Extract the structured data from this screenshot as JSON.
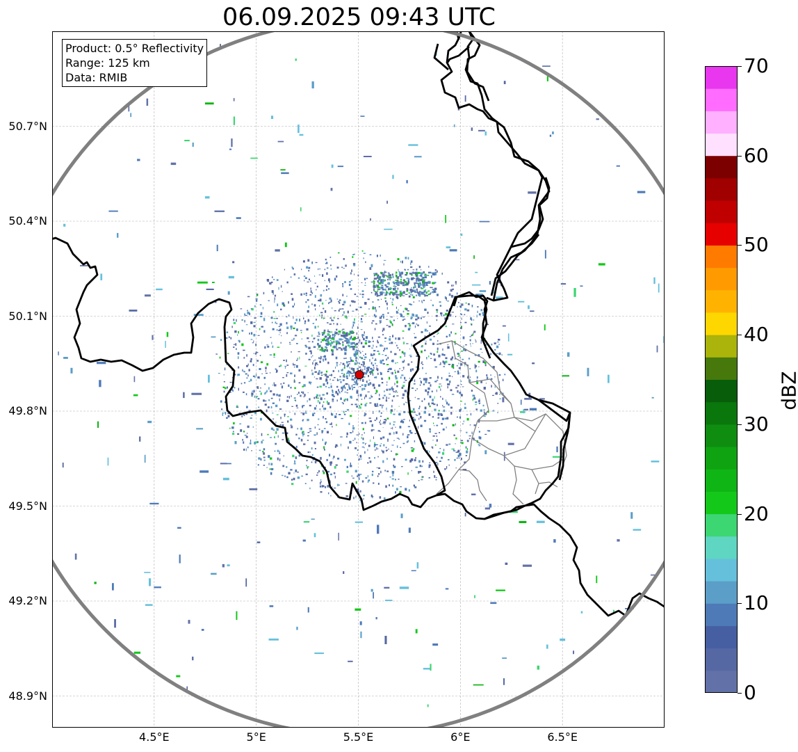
{
  "map": {
    "title": "06.09.2025 09:43 UTC",
    "region": "Belgium / Luxembourg radar coverage",
    "extent": {
      "lon_min": 4.0,
      "lon_max": 7.0,
      "lat_min": 48.8,
      "lat_max": 51.0
    },
    "radar_site": {
      "lon": 5.505,
      "lat": 49.915,
      "color": "#d00000"
    },
    "range_circle_km": 125,
    "info_box": {
      "line1": "Product: 0.5° Reflectivity",
      "line2": "Range: 125 km",
      "line3": "Data: RMIB"
    },
    "lat_ticks": [
      "50.7°N",
      "50.4°N",
      "50.1°N",
      "49.8°N",
      "49.5°N",
      "49.2°N",
      "48.9°N"
    ],
    "lat_values": [
      50.7,
      50.4,
      50.1,
      49.8,
      49.5,
      49.2,
      48.9
    ],
    "lon_ticks": [
      "4.5°E",
      "5°E",
      "5.5°E",
      "6°E",
      "6.5°E"
    ],
    "lon_values": [
      4.5,
      5.0,
      5.5,
      6.0,
      6.5
    ],
    "grid": true
  },
  "colorbar": {
    "label": "dBZ",
    "ticks": [
      "0",
      "10",
      "20",
      "30",
      "40",
      "50",
      "60",
      "70"
    ],
    "tick_values": [
      0,
      10,
      20,
      30,
      40,
      50,
      60,
      70
    ],
    "min": 0,
    "max": 70,
    "colors": [
      "#6272a8",
      "#5668a3",
      "#465fa3",
      "#4e7ab8",
      "#5b9ec8",
      "#65c0dc",
      "#5ed6c2",
      "#3cd673",
      "#14c81a",
      "#0fb514",
      "#0fa312",
      "#0e8d10",
      "#0a770c",
      "#075d0a",
      "#46780c",
      "#aab40a",
      "#ffd700",
      "#ffb300",
      "#ff9a00",
      "#ff7b00",
      "#e60000",
      "#c00000",
      "#a00000",
      "#7d0000",
      "#ffe0ff",
      "#ffb0ff",
      "#ff6cff",
      "#e837ee"
    ]
  },
  "chart_data": {
    "type": "heatmap",
    "title": "06.09.2025 09:43 UTC",
    "xlabel": "",
    "ylabel": "",
    "xlim": [
      4.0,
      7.0
    ],
    "ylim": [
      48.8,
      51.0
    ],
    "colorbar_label": "dBZ",
    "colorbar_range": [
      0,
      70
    ]
  }
}
